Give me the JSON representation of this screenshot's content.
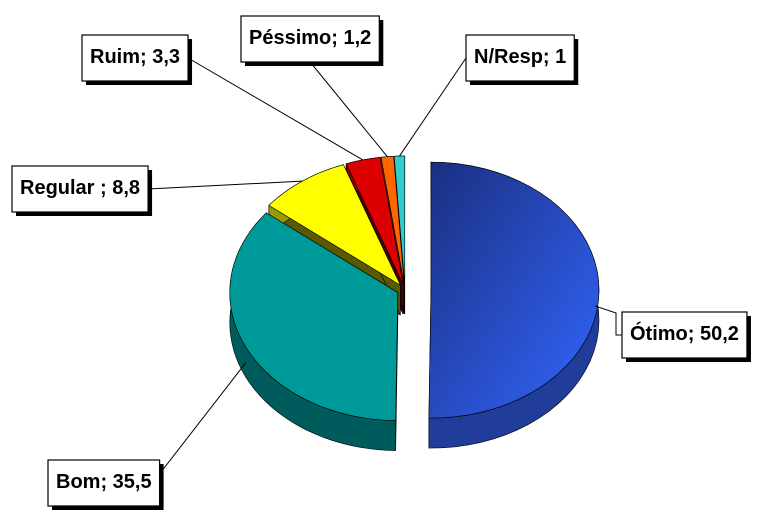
{
  "chart_data": {
    "type": "pie",
    "categories": [
      "Ótimo",
      "Bom",
      "Regular ",
      "Ruim",
      "Péssimo",
      "N/Resp"
    ],
    "label_separator": "; ",
    "values": [
      50.2,
      35.5,
      8.8,
      3.3,
      1.2,
      1
    ],
    "value_labels": [
      "50,2",
      "35,5",
      "8,8",
      "3,3",
      "1,2",
      "1"
    ],
    "colors": [
      "#3366ff",
      "#009999",
      "#ffff00",
      "#dd0000",
      "#ff6600",
      "#33cccc"
    ]
  }
}
